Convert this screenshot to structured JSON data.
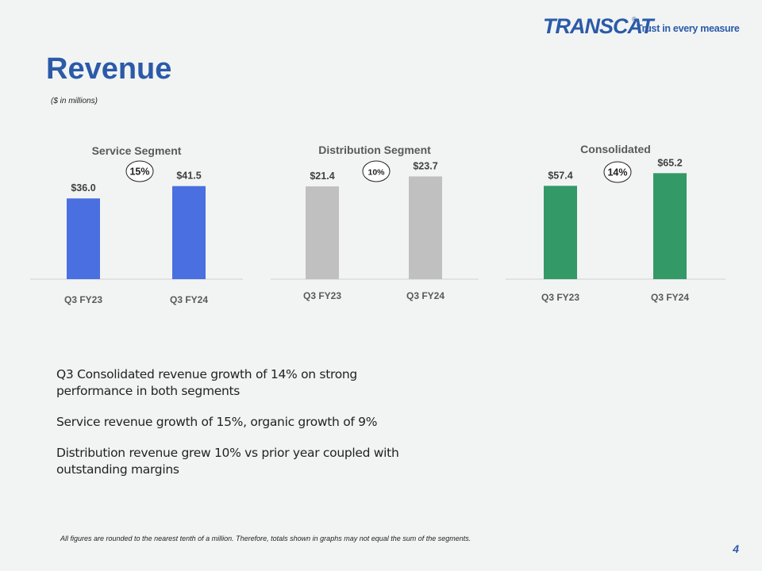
{
  "logo": {
    "wordmark": "TRANSCAT",
    "registered": "®",
    "tagline": "Trust in every measure"
  },
  "slide": {
    "title": "Revenue",
    "subtitle": "($ in millions)",
    "bullets": [
      "Q3 Consolidated revenue growth of 14% on strong performance in both segments",
      "Service revenue growth of 15%, organic growth of 9%",
      "Distribution revenue grew 10% vs prior year coupled with outstanding margins"
    ],
    "footnote": "All figures are rounded to the nearest tenth of a million. Therefore, totals shown in graphs may not equal the sum of the segments.",
    "page_number": "4"
  },
  "chart_data": [
    {
      "type": "bar",
      "title": "Service Segment",
      "categories": [
        "Q3 FY23",
        "Q3 FY24"
      ],
      "values": [
        36.0,
        41.5
      ],
      "data_labels": [
        "$36.0",
        "$41.5"
      ],
      "growth_label": "15%",
      "color": "#4a6fe0",
      "ylim": [
        0,
        58
      ]
    },
    {
      "type": "bar",
      "title": "Distribution Segment",
      "categories": [
        "Q3 FY23",
        "Q3 FY24"
      ],
      "values": [
        21.4,
        23.7
      ],
      "data_labels": [
        "$21.4",
        "$23.7"
      ],
      "growth_label": "10%",
      "color": "#c0c0c0",
      "ylim": [
        0,
        30
      ]
    },
    {
      "type": "bar",
      "title": "Consolidated",
      "categories": [
        "Q3 FY23",
        "Q3 FY24"
      ],
      "values": [
        57.4,
        65.2
      ],
      "data_labels": [
        "$57.4",
        "$65.2"
      ],
      "growth_label": "14%",
      "color": "#339966",
      "ylim": [
        0,
        80
      ]
    }
  ]
}
